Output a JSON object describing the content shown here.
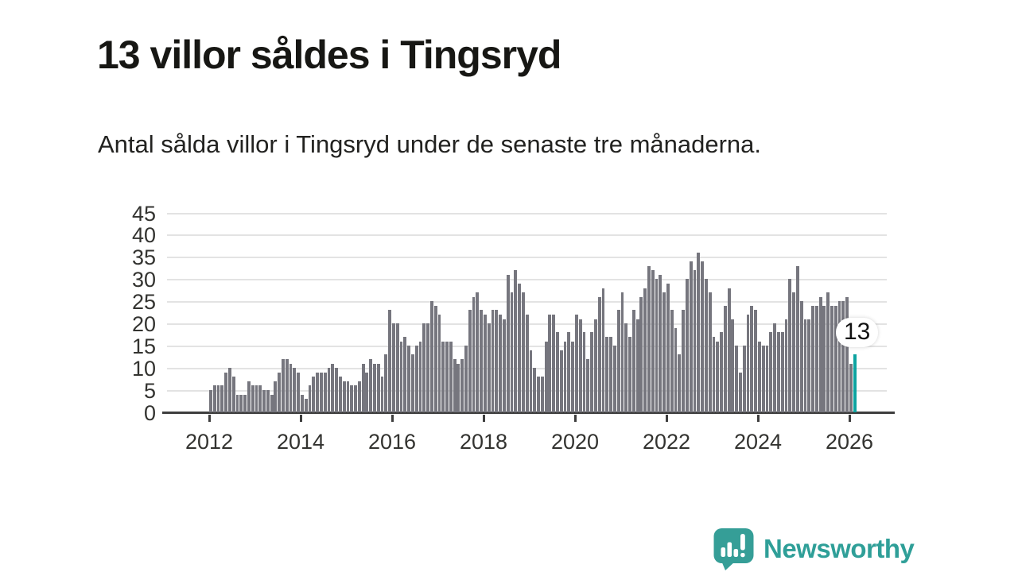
{
  "header": {
    "title": "13 villor såldes i Tingsryd",
    "subtitle": "Antal sålda villor i Tingsryd under de senaste tre månaderna."
  },
  "chart_data": {
    "type": "bar",
    "title": "13 villor såldes i Tingsryd",
    "subtitle": "Antal sålda villor i Tingsryd under de senaste tre månaderna.",
    "unit": "antal sålda villor (rullande tre månader)",
    "x_start": "2012-01",
    "frequency": "monthly",
    "values": [
      5,
      6,
      6,
      6,
      9,
      10,
      8,
      4,
      4,
      4,
      7,
      6,
      6,
      6,
      5,
      5,
      4,
      7,
      9,
      12,
      12,
      11,
      10,
      9,
      4,
      3,
      6,
      8,
      9,
      9,
      9,
      10,
      11,
      10,
      8,
      7,
      7,
      6,
      6,
      7,
      11,
      9,
      12,
      11,
      11,
      8,
      13,
      23,
      20,
      20,
      16,
      17,
      15,
      13,
      15,
      16,
      20,
      20,
      25,
      24,
      22,
      16,
      16,
      16,
      12,
      11,
      12,
      15,
      23,
      26,
      27,
      23,
      22,
      20,
      23,
      23,
      22,
      21,
      31,
      27,
      32,
      29,
      27,
      22,
      14,
      10,
      8,
      8,
      16,
      22,
      22,
      18,
      14,
      16,
      18,
      16,
      22,
      21,
      18,
      12,
      18,
      21,
      26,
      28,
      17,
      17,
      15,
      23,
      27,
      20,
      17,
      23,
      21,
      26,
      28,
      33,
      32,
      30,
      31,
      27,
      29,
      23,
      19,
      13,
      23,
      30,
      34,
      32,
      36,
      34,
      30,
      27,
      17,
      16,
      18,
      24,
      28,
      21,
      15,
      9,
      15,
      22,
      24,
      23,
      16,
      15,
      15,
      18,
      20,
      18,
      18,
      21,
      30,
      27,
      33,
      25,
      21,
      21,
      24,
      24,
      26,
      24,
      27,
      24,
      24,
      25,
      25,
      26,
      11,
      13
    ],
    "highlight_last_value": 13,
    "highlight_label": "13",
    "highlight_color": "#0da3a0",
    "bar_color": "#76767e",
    "x_tick_labels": [
      "2012",
      "2014",
      "2016",
      "2018",
      "2020",
      "2022",
      "2024",
      "2026"
    ],
    "y_ticks": [
      0,
      5,
      10,
      15,
      20,
      25,
      30,
      35,
      40,
      45
    ],
    "ylim": [
      0,
      45
    ],
    "grid": true,
    "legend": "none"
  },
  "footer": {
    "brand": "Newsworthy",
    "brand_color": "#2f9f98",
    "logo_icon": "speech-bubble-bar-chart-icon"
  }
}
